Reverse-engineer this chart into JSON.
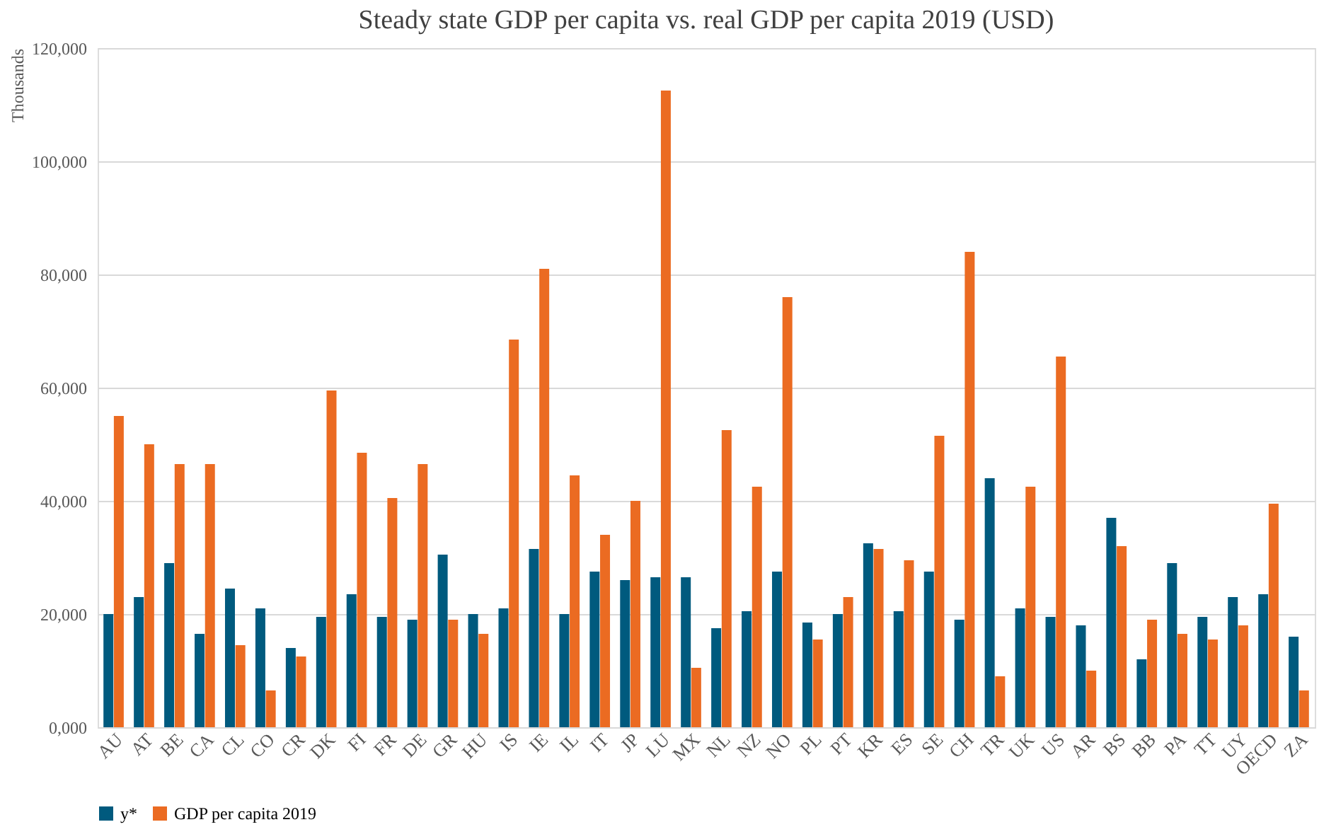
{
  "chart_data": {
    "type": "bar",
    "title": "Steady state GDP per capita vs. real GDP per capita 2019 (USD)",
    "ylabel": "Thousands",
    "categories": [
      "AU",
      "AT",
      "BE",
      "CA",
      "CL",
      "CO",
      "CR",
      "DK",
      "FI",
      "FR",
      "DE",
      "GR",
      "HU",
      "IS",
      "IE",
      "IL",
      "IT",
      "JP",
      "LU",
      "MX",
      "NL",
      "NZ",
      "NO",
      "PL",
      "PT",
      "KR",
      "ES",
      "SE",
      "CH",
      "TR",
      "UK",
      "US",
      "AR",
      "BS",
      "BB",
      "PA",
      "TT",
      "UY",
      "OECD",
      "ZA"
    ],
    "series": [
      {
        "name": "y*",
        "color": "#005a7e",
        "values": [
          20000,
          23000,
          29000,
          16500,
          24500,
          21000,
          14000,
          19500,
          23500,
          19500,
          19000,
          30500,
          20000,
          21000,
          31500,
          20000,
          27500,
          26000,
          26500,
          26500,
          17500,
          20500,
          27500,
          18500,
          20000,
          32500,
          20500,
          27500,
          19000,
          44000,
          21000,
          19500,
          18000,
          37000,
          12000,
          29000,
          19500,
          23000,
          23500,
          16000
        ]
      },
      {
        "name": "GDP per capita 2019",
        "color": "#eb6b22",
        "values": [
          55000,
          50000,
          46500,
          46500,
          14500,
          6500,
          12500,
          59500,
          48500,
          40500,
          46500,
          19000,
          16500,
          68500,
          81000,
          44500,
          34000,
          40000,
          112500,
          10500,
          52500,
          42500,
          76000,
          15500,
          23000,
          31500,
          29500,
          51500,
          84000,
          9000,
          42500,
          65500,
          10000,
          32000,
          19000,
          16500,
          15500,
          18000,
          39500,
          6500
        ]
      }
    ],
    "ylim": [
      0,
      120000
    ],
    "yticks": [
      {
        "value": 0,
        "label": "0,000"
      },
      {
        "value": 20000,
        "label": "20,000"
      },
      {
        "value": 40000,
        "label": "40,000"
      },
      {
        "value": 60000,
        "label": "60,000"
      },
      {
        "value": 80000,
        "label": "80,000"
      },
      {
        "value": 100000,
        "label": "100,000"
      },
      {
        "value": 120000,
        "label": "120,000"
      }
    ],
    "grid": "y",
    "legend": "bottom"
  }
}
